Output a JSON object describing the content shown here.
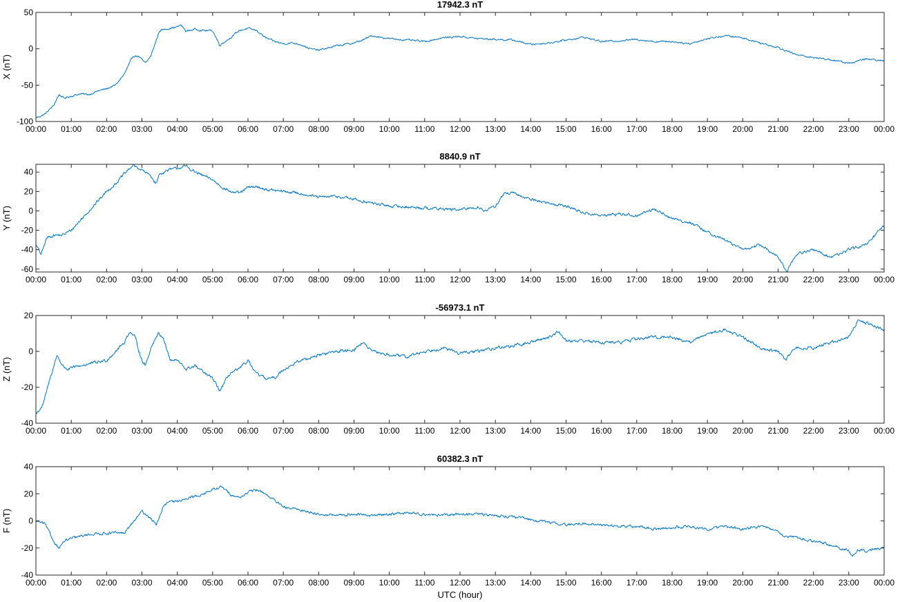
{
  "figure": {
    "xlabel": "UTC (hour)"
  },
  "chart_data": [
    {
      "type": "line",
      "title": "17942.3 nT",
      "ylabel": "X (nT)",
      "xlabel": "",
      "xlim": [
        0,
        24
      ],
      "ylim": [
        -100,
        50
      ],
      "yticks": [
        -100,
        -50,
        0,
        50
      ],
      "xtick_labels": [
        "00:00",
        "01:00",
        "02:00",
        "03:00",
        "04:00",
        "05:00",
        "06:00",
        "07:00",
        "08:00",
        "09:00",
        "10:00",
        "11:00",
        "12:00",
        "13:00",
        "14:00",
        "15:00",
        "16:00",
        "17:00",
        "18:00",
        "19:00",
        "20:00",
        "21:00",
        "22:00",
        "23:00",
        "00:00"
      ],
      "grid": false,
      "color": "#0072BD",
      "noise": 1.0,
      "series": [
        {
          "x": [
            0,
            0.25,
            0.5,
            0.65,
            0.8,
            1,
            1.25,
            1.5,
            1.75,
            2,
            2.25,
            2.5,
            2.75,
            2.9,
            3,
            3.1,
            3.25,
            3.5,
            3.75,
            4,
            4.1,
            4.25,
            4.5,
            4.75,
            5,
            5.2,
            5.5,
            5.75,
            6,
            6.25,
            6.5,
            6.75,
            7,
            7.25,
            7.5,
            7.75,
            8,
            8.5,
            9,
            9.25,
            9.5,
            10,
            10.5,
            11,
            11.5,
            12,
            12.5,
            13,
            13.5,
            14,
            14.5,
            15,
            15.5,
            16,
            16.5,
            17,
            17.5,
            18,
            18.5,
            19,
            19.5,
            20,
            20.5,
            21,
            21.5,
            22,
            22.5,
            23,
            23.5,
            24
          ],
          "y": [
            -95,
            -90,
            -78,
            -63,
            -68,
            -65,
            -62,
            -63,
            -58,
            -55,
            -50,
            -35,
            -10,
            -10,
            -15,
            -20,
            -10,
            25,
            28,
            30,
            33,
            24,
            27,
            25,
            25,
            5,
            15,
            25,
            28,
            25,
            15,
            10,
            7,
            8,
            6,
            0,
            -2,
            4,
            8,
            12,
            18,
            14,
            12,
            10,
            15,
            17,
            14,
            13,
            12,
            6,
            8,
            12,
            16,
            10,
            11,
            13,
            10,
            10,
            7,
            14,
            18,
            15,
            8,
            2,
            -8,
            -12,
            -15,
            -20,
            -14,
            -17
          ]
        }
      ]
    },
    {
      "type": "line",
      "title": "8840.9 nT",
      "ylabel": "Y (nT)",
      "xlabel": "",
      "xlim": [
        0,
        24
      ],
      "ylim": [
        -63,
        48
      ],
      "yticks": [
        -60,
        -40,
        -20,
        0,
        20,
        40
      ],
      "xtick_labels": [
        "00:00",
        "01:00",
        "02:00",
        "03:00",
        "04:00",
        "05:00",
        "06:00",
        "07:00",
        "08:00",
        "09:00",
        "10:00",
        "11:00",
        "12:00",
        "13:00",
        "14:00",
        "15:00",
        "16:00",
        "17:00",
        "18:00",
        "19:00",
        "20:00",
        "21:00",
        "22:00",
        "23:00",
        "00:00"
      ],
      "grid": false,
      "color": "#0072BD",
      "noise": 1.2,
      "series": [
        {
          "x": [
            0,
            0.15,
            0.3,
            0.5,
            0.75,
            1,
            1.25,
            1.5,
            1.75,
            2,
            2.25,
            2.5,
            2.75,
            3,
            3.25,
            3.4,
            3.5,
            3.75,
            4,
            4.25,
            4.5,
            5,
            5.25,
            5.5,
            5.75,
            6,
            6.25,
            6.5,
            7,
            7.5,
            8,
            8.5,
            9,
            9.5,
            10,
            10.5,
            11,
            11.5,
            12,
            12.5,
            12.75,
            13,
            13.25,
            13.5,
            14,
            14.5,
            15,
            15.5,
            16,
            16.5,
            17,
            17.5,
            18,
            18.5,
            19,
            19.5,
            20,
            20.5,
            21,
            21.25,
            21.5,
            22,
            22.5,
            23,
            23.5,
            24
          ],
          "y": [
            -35,
            -45,
            -28,
            -25,
            -25,
            -20,
            -10,
            0,
            10,
            20,
            28,
            38,
            47,
            42,
            36,
            28,
            38,
            42,
            44,
            46,
            40,
            32,
            25,
            20,
            18,
            24,
            25,
            22,
            20,
            18,
            14,
            15,
            12,
            8,
            5,
            4,
            3,
            2,
            1,
            4,
            0,
            5,
            18,
            18,
            12,
            8,
            5,
            -2,
            -5,
            -3,
            -5,
            2,
            -8,
            -12,
            -22,
            -30,
            -40,
            -35,
            -48,
            -62,
            -45,
            -40,
            -48,
            -40,
            -35,
            -15
          ]
        }
      ]
    },
    {
      "type": "line",
      "title": "-56973.1 nT",
      "ylabel": "Z (nT)",
      "xlabel": "",
      "xlim": [
        0,
        24
      ],
      "ylim": [
        -40,
        20
      ],
      "yticks": [
        -40,
        -20,
        0,
        20
      ],
      "xtick_labels": [
        "00:00",
        "01:00",
        "02:00",
        "03:00",
        "04:00",
        "05:00",
        "06:00",
        "07:00",
        "08:00",
        "09:00",
        "10:00",
        "11:00",
        "12:00",
        "13:00",
        "14:00",
        "15:00",
        "16:00",
        "17:00",
        "18:00",
        "19:00",
        "20:00",
        "21:00",
        "22:00",
        "23:00",
        "00:00"
      ],
      "grid": false,
      "color": "#0072BD",
      "noise": 0.7,
      "series": [
        {
          "x": [
            0,
            0.2,
            0.4,
            0.6,
            0.75,
            0.9,
            1.25,
            1.5,
            2,
            2.25,
            2.5,
            2.65,
            2.8,
            3,
            3.1,
            3.25,
            3.45,
            3.6,
            3.8,
            4,
            4.25,
            4.5,
            4.75,
            5,
            5.2,
            5.5,
            5.75,
            6,
            6.2,
            6.5,
            6.75,
            7,
            7.5,
            8,
            8.5,
            9,
            9.25,
            9.5,
            10,
            10.5,
            11,
            11.5,
            12,
            12.5,
            13,
            13.5,
            14,
            14.5,
            14.8,
            15,
            15.5,
            16,
            16.5,
            17,
            17.5,
            18,
            18.5,
            19,
            19.5,
            20,
            20.5,
            21,
            21.2,
            21.5,
            22,
            22.5,
            23,
            23.25,
            23.5,
            24
          ],
          "y": [
            -35,
            -30,
            -15,
            -2,
            -8,
            -10,
            -8,
            -7,
            -5,
            0,
            5,
            11,
            8,
            -5,
            -8,
            2,
            10,
            8,
            -5,
            -5,
            -10,
            -8,
            -12,
            -15,
            -22,
            -12,
            -10,
            -5,
            -12,
            -15,
            -15,
            -10,
            -5,
            -2,
            0,
            1,
            5,
            0,
            -2,
            -3,
            0,
            2,
            -1,
            0,
            2,
            3,
            5,
            8,
            11,
            6,
            6,
            5,
            5,
            7,
            8,
            8,
            5,
            10,
            12,
            8,
            2,
            0,
            -5,
            2,
            2,
            5,
            8,
            17,
            16,
            12
          ]
        }
      ]
    },
    {
      "type": "line",
      "title": "60382.3 nT",
      "ylabel": "F (nT)",
      "xlabel": "UTC (hour)",
      "xlim": [
        0,
        24
      ],
      "ylim": [
        -40,
        40
      ],
      "yticks": [
        -40,
        -20,
        0,
        20,
        40
      ],
      "xtick_labels": [
        "00:00",
        "01:00",
        "02:00",
        "03:00",
        "04:00",
        "05:00",
        "06:00",
        "07:00",
        "08:00",
        "09:00",
        "10:00",
        "11:00",
        "12:00",
        "13:00",
        "14:00",
        "15:00",
        "16:00",
        "17:00",
        "18:00",
        "19:00",
        "20:00",
        "21:00",
        "22:00",
        "23:00",
        "00:00"
      ],
      "grid": false,
      "color": "#0072BD",
      "noise": 0.8,
      "series": [
        {
          "x": [
            0,
            0.25,
            0.5,
            0.65,
            0.8,
            1,
            1.5,
            2,
            2.5,
            3,
            3.25,
            3.4,
            3.6,
            3.75,
            4,
            4.25,
            4.5,
            4.75,
            5,
            5.25,
            5.5,
            5.75,
            6,
            6.25,
            6.5,
            7,
            7.5,
            8,
            8.5,
            9,
            9.5,
            10,
            10.5,
            11,
            11.5,
            12,
            12.5,
            13,
            13.5,
            14,
            14.5,
            15,
            15.5,
            16,
            16.5,
            17,
            17.5,
            18,
            18.5,
            19,
            19.5,
            20,
            20.5,
            21,
            21.25,
            21.5,
            22,
            22.5,
            23,
            23.1,
            23.25,
            23.5,
            24
          ],
          "y": [
            0,
            -2,
            -15,
            -20,
            -15,
            -13,
            -10,
            -9,
            -9,
            7,
            2,
            -3,
            10,
            14,
            14,
            17,
            18,
            20,
            23,
            25,
            20,
            17,
            21,
            23,
            20,
            10,
            8,
            5,
            4,
            5,
            4,
            5,
            6,
            5,
            4,
            5,
            5,
            4,
            3,
            1,
            -1,
            -3,
            -2,
            -3,
            -4,
            -4,
            -6,
            -5,
            -4,
            -6,
            -4,
            -6,
            -4,
            -8,
            -12,
            -12,
            -15,
            -18,
            -22,
            -26,
            -22,
            -22,
            -20
          ]
        }
      ]
    }
  ]
}
